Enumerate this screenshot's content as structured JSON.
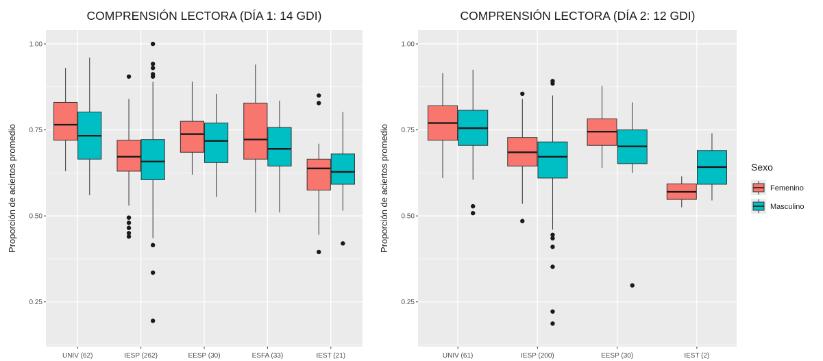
{
  "colors": {
    "panel_bg": "#ebebeb",
    "grid": "#ffffff",
    "femenino": "#f8766d",
    "masculino": "#00bfc4",
    "median": "#1a1a1a",
    "outline": "#333333"
  },
  "chart_data": [
    {
      "type": "boxplot",
      "title": "COMPRENSIÓN LECTORA (DÍA 1: 14 GDI)",
      "xlabel": "",
      "ylabel": "Proporción de aciertos promedio",
      "ylim": [
        0.12,
        1.04
      ],
      "yticks": [
        0.25,
        0.5,
        0.75,
        1.0
      ],
      "ytick_labels": [
        "0.25",
        "0.50",
        "0.75",
        "1.00"
      ],
      "categories": [
        "UNIV (62)",
        "IESP (262)",
        "EESP (30)",
        "ESFA (33)",
        "IEST (21)"
      ],
      "series": [
        {
          "name": "Femenino",
          "boxes": [
            {
              "min": 0.63,
              "q1": 0.72,
              "median": 0.765,
              "q3": 0.83,
              "max": 0.93,
              "outliers": []
            },
            {
              "min": 0.53,
              "q1": 0.63,
              "median": 0.672,
              "q3": 0.72,
              "max": 0.84,
              "outliers": [
                0.905,
                0.495,
                0.48,
                0.465,
                0.45,
                0.44
              ]
            },
            {
              "min": 0.62,
              "q1": 0.685,
              "median": 0.738,
              "q3": 0.775,
              "max": 0.89,
              "outliers": []
            },
            {
              "min": 0.51,
              "q1": 0.665,
              "median": 0.722,
              "q3": 0.828,
              "max": 0.94,
              "outliers": []
            },
            {
              "min": 0.445,
              "q1": 0.575,
              "median": 0.638,
              "q3": 0.665,
              "max": 0.71,
              "outliers": [
                0.85,
                0.828,
                0.395
              ]
            }
          ]
        },
        {
          "name": "Masculino",
          "boxes": [
            {
              "min": 0.56,
              "q1": 0.665,
              "median": 0.733,
              "q3": 0.802,
              "max": 0.96,
              "outliers": []
            },
            {
              "min": 0.435,
              "q1": 0.605,
              "median": 0.658,
              "q3": 0.722,
              "max": 0.89,
              "outliers": [
                1.0,
                0.942,
                0.93,
                0.912,
                0.905,
                0.415,
                0.335,
                0.195
              ]
            },
            {
              "min": 0.555,
              "q1": 0.655,
              "median": 0.718,
              "q3": 0.77,
              "max": 0.855,
              "outliers": []
            },
            {
              "min": 0.51,
              "q1": 0.645,
              "median": 0.695,
              "q3": 0.757,
              "max": 0.835,
              "outliers": []
            },
            {
              "min": 0.515,
              "q1": 0.592,
              "median": 0.628,
              "q3": 0.68,
              "max": 0.802,
              "outliers": [
                0.42
              ]
            }
          ]
        }
      ]
    },
    {
      "type": "boxplot",
      "title": "COMPRENSIÓN LECTORA (DÍA 2: 12 GDI)",
      "xlabel": "",
      "ylabel": "Proporción de aciertos promedio",
      "ylim": [
        0.12,
        1.04
      ],
      "yticks": [
        0.25,
        0.5,
        0.75,
        1.0
      ],
      "ytick_labels": [
        "0.25",
        "0.50",
        "0.75",
        "1.00"
      ],
      "categories": [
        "UNIV (61)",
        "IESP (200)",
        "EESP (30)",
        "IEST (2)"
      ],
      "series": [
        {
          "name": "Femenino",
          "boxes": [
            {
              "min": 0.61,
              "q1": 0.72,
              "median": 0.77,
              "q3": 0.82,
              "max": 0.915,
              "outliers": []
            },
            {
              "min": 0.535,
              "q1": 0.645,
              "median": 0.685,
              "q3": 0.728,
              "max": 0.84,
              "outliers": [
                0.855,
                0.485
              ]
            },
            {
              "min": 0.64,
              "q1": 0.705,
              "median": 0.745,
              "q3": 0.782,
              "max": 0.878,
              "outliers": []
            },
            {
              "min": 0.525,
              "q1": 0.548,
              "median": 0.57,
              "q3": 0.593,
              "max": 0.615,
              "outliers": []
            }
          ]
        },
        {
          "name": "Masculino",
          "boxes": [
            {
              "min": 0.605,
              "q1": 0.705,
              "median": 0.755,
              "q3": 0.807,
              "max": 0.925,
              "outliers": [
                0.528,
                0.508
              ]
            },
            {
              "min": 0.46,
              "q1": 0.61,
              "median": 0.672,
              "q3": 0.715,
              "max": 0.85,
              "outliers": [
                0.892,
                0.885,
                0.445,
                0.435,
                0.41,
                0.352,
                0.222,
                0.187
              ]
            },
            {
              "min": 0.625,
              "q1": 0.652,
              "median": 0.702,
              "q3": 0.75,
              "max": 0.83,
              "outliers": [
                0.298
              ]
            },
            {
              "min": 0.545,
              "q1": 0.592,
              "median": 0.642,
              "q3": 0.69,
              "max": 0.74,
              "outliers": []
            }
          ]
        }
      ]
    }
  ],
  "legend": {
    "title": "Sexo",
    "items": [
      {
        "label": "Femenino",
        "color": "#f8766d"
      },
      {
        "label": "Masculino",
        "color": "#00bfc4"
      }
    ],
    "position": "right"
  }
}
